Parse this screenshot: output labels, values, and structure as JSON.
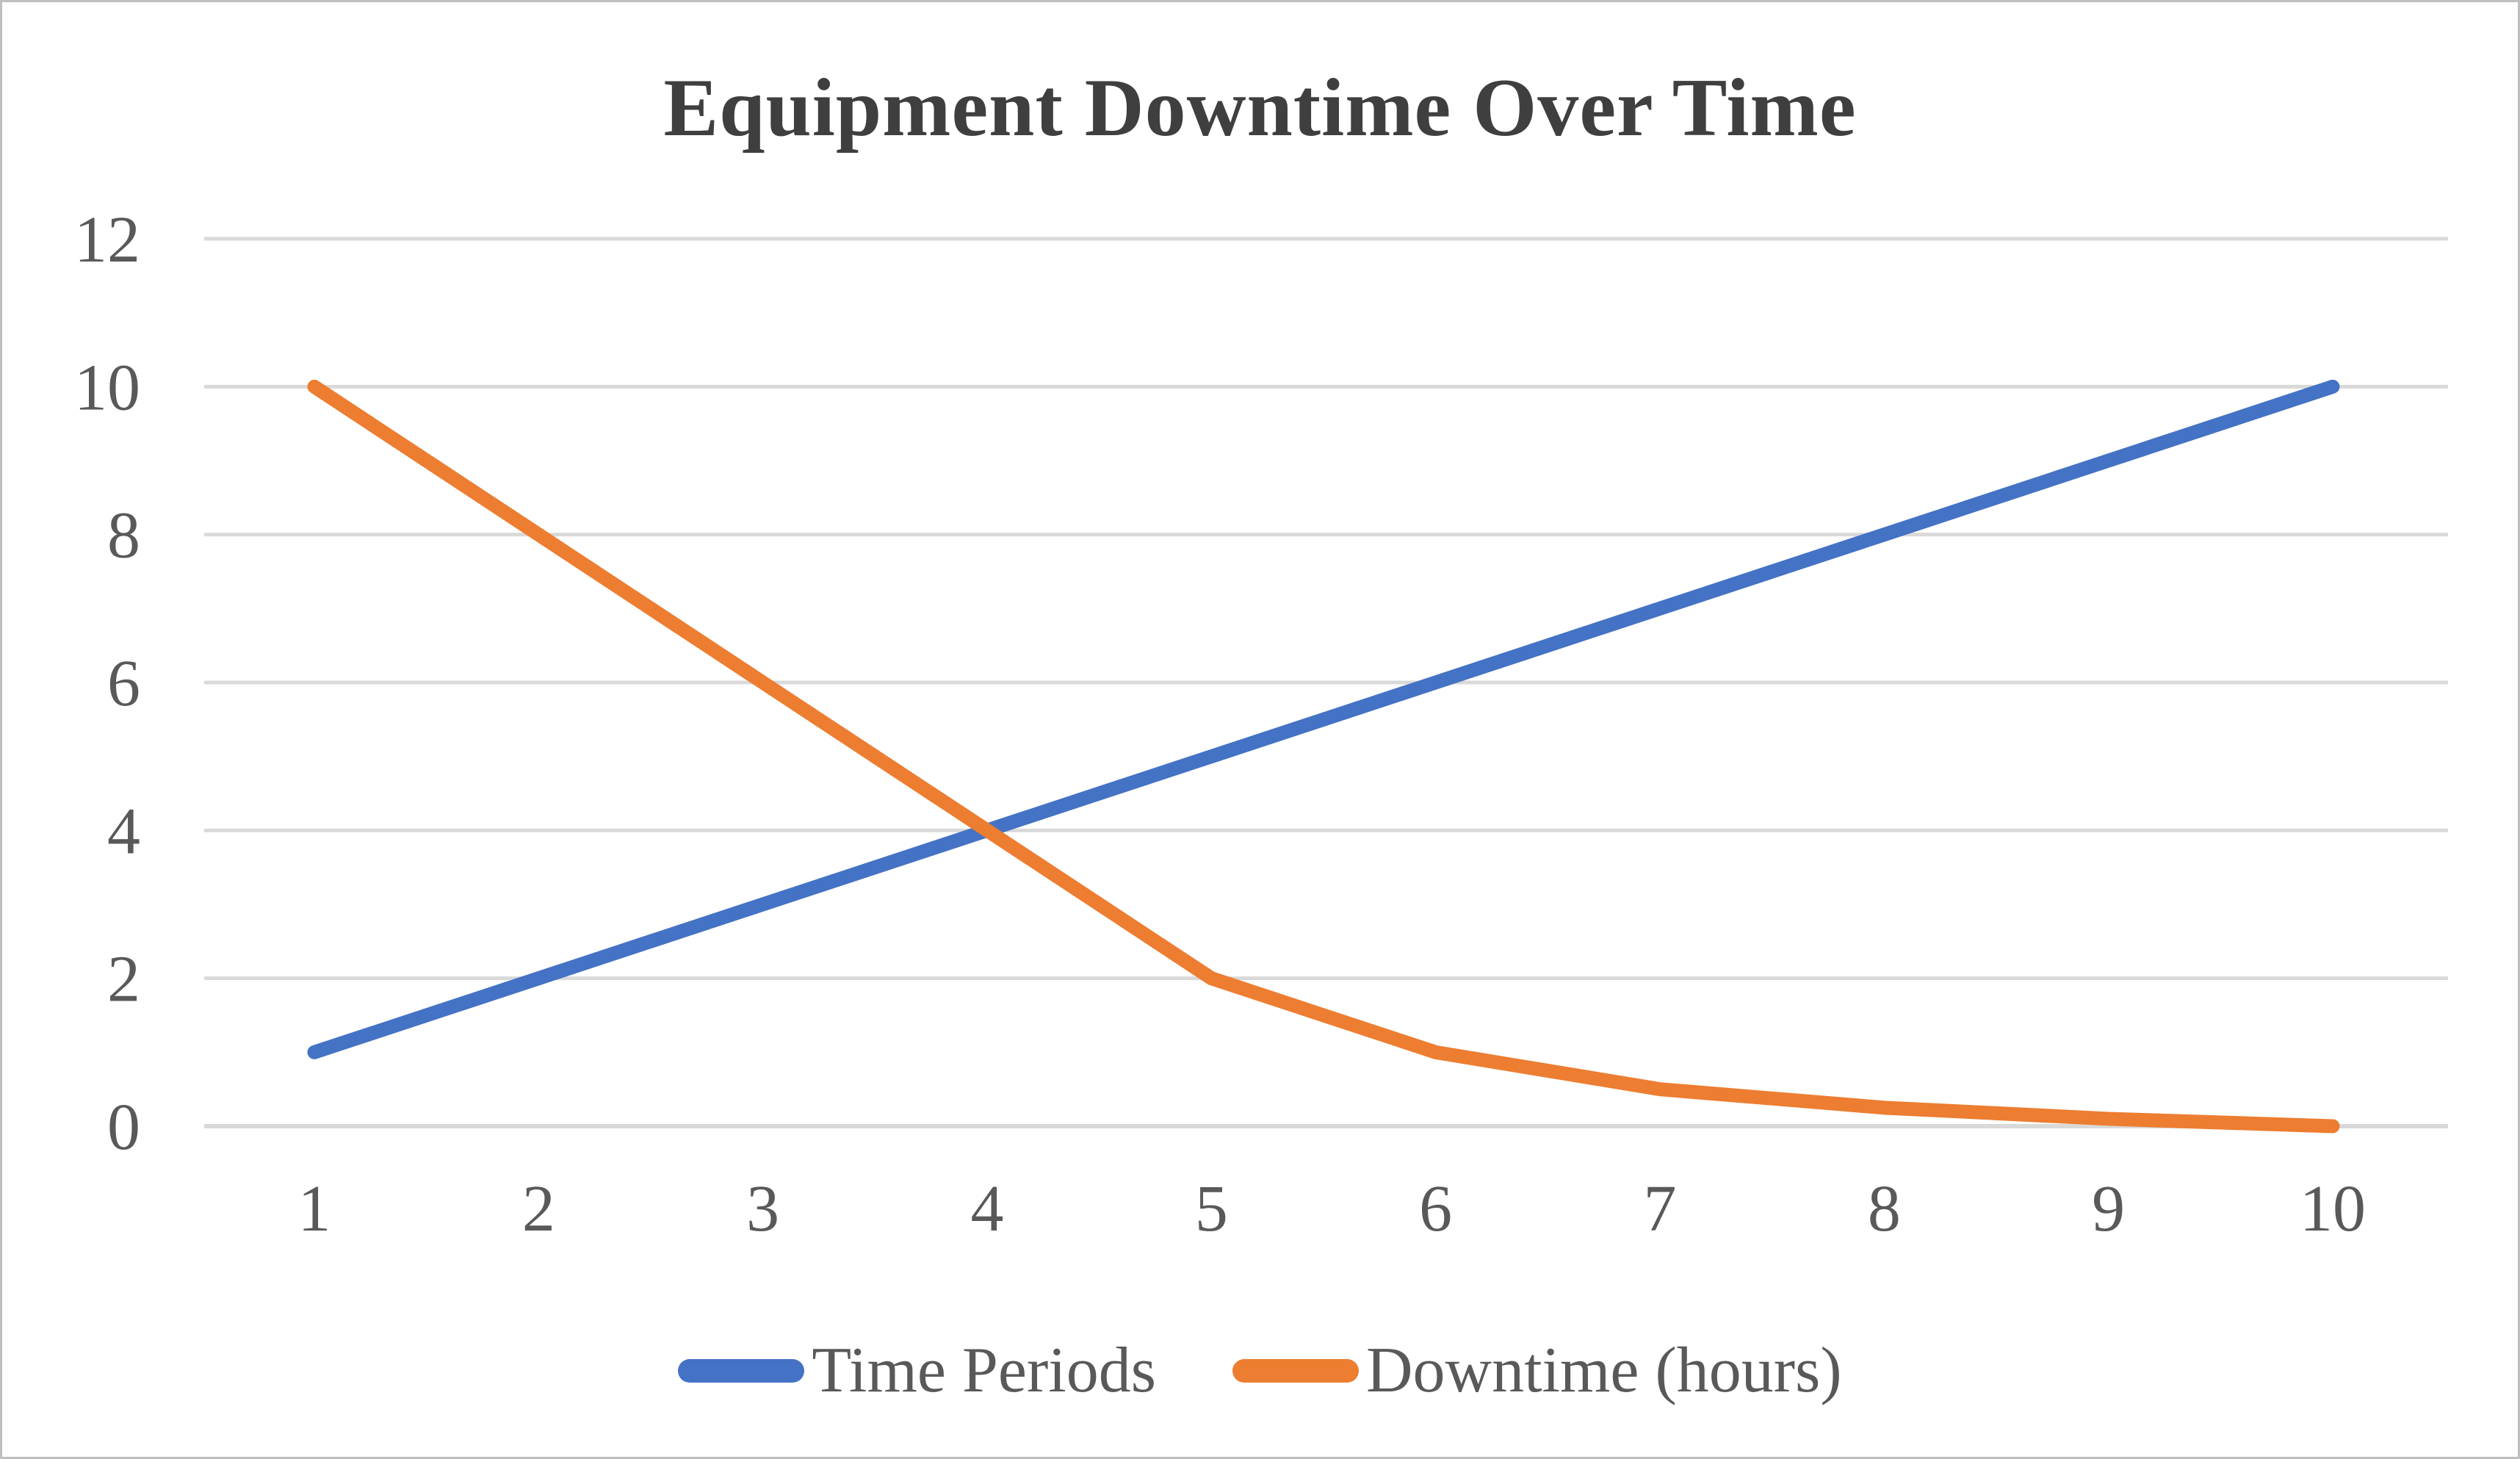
{
  "chart_data": {
    "type": "line",
    "title": "Equipment Downtime Over Time",
    "x": [
      1,
      2,
      3,
      4,
      5,
      6,
      7,
      8,
      9,
      10
    ],
    "x_tick_labels": [
      "1",
      "2",
      "3",
      "4",
      "5",
      "6",
      "7",
      "8",
      "9",
      "10"
    ],
    "y_ticks": [
      0,
      2,
      4,
      6,
      8,
      10,
      12
    ],
    "y_tick_labels": [
      "0",
      "2",
      "4",
      "6",
      "8",
      "10",
      "12"
    ],
    "ylim": [
      0,
      12
    ],
    "grid": true,
    "legend_position": "bottom",
    "series": [
      {
        "name": "Time Periods",
        "color": "#4472C4",
        "values": [
          1,
          2,
          3,
          4,
          5,
          6,
          7,
          8,
          9,
          10
        ]
      },
      {
        "name": "Downtime (hours)",
        "color": "#ED7D31",
        "values": [
          10,
          8,
          6,
          4,
          2,
          1,
          0.5,
          0.25,
          0.1,
          0
        ]
      }
    ],
    "colors": {
      "grid": "#D9D9D9",
      "axis_text": "#595959",
      "title_text": "#3F3F3F",
      "background": "#FFFFFF",
      "frame_border": "#BFBFBF"
    }
  }
}
